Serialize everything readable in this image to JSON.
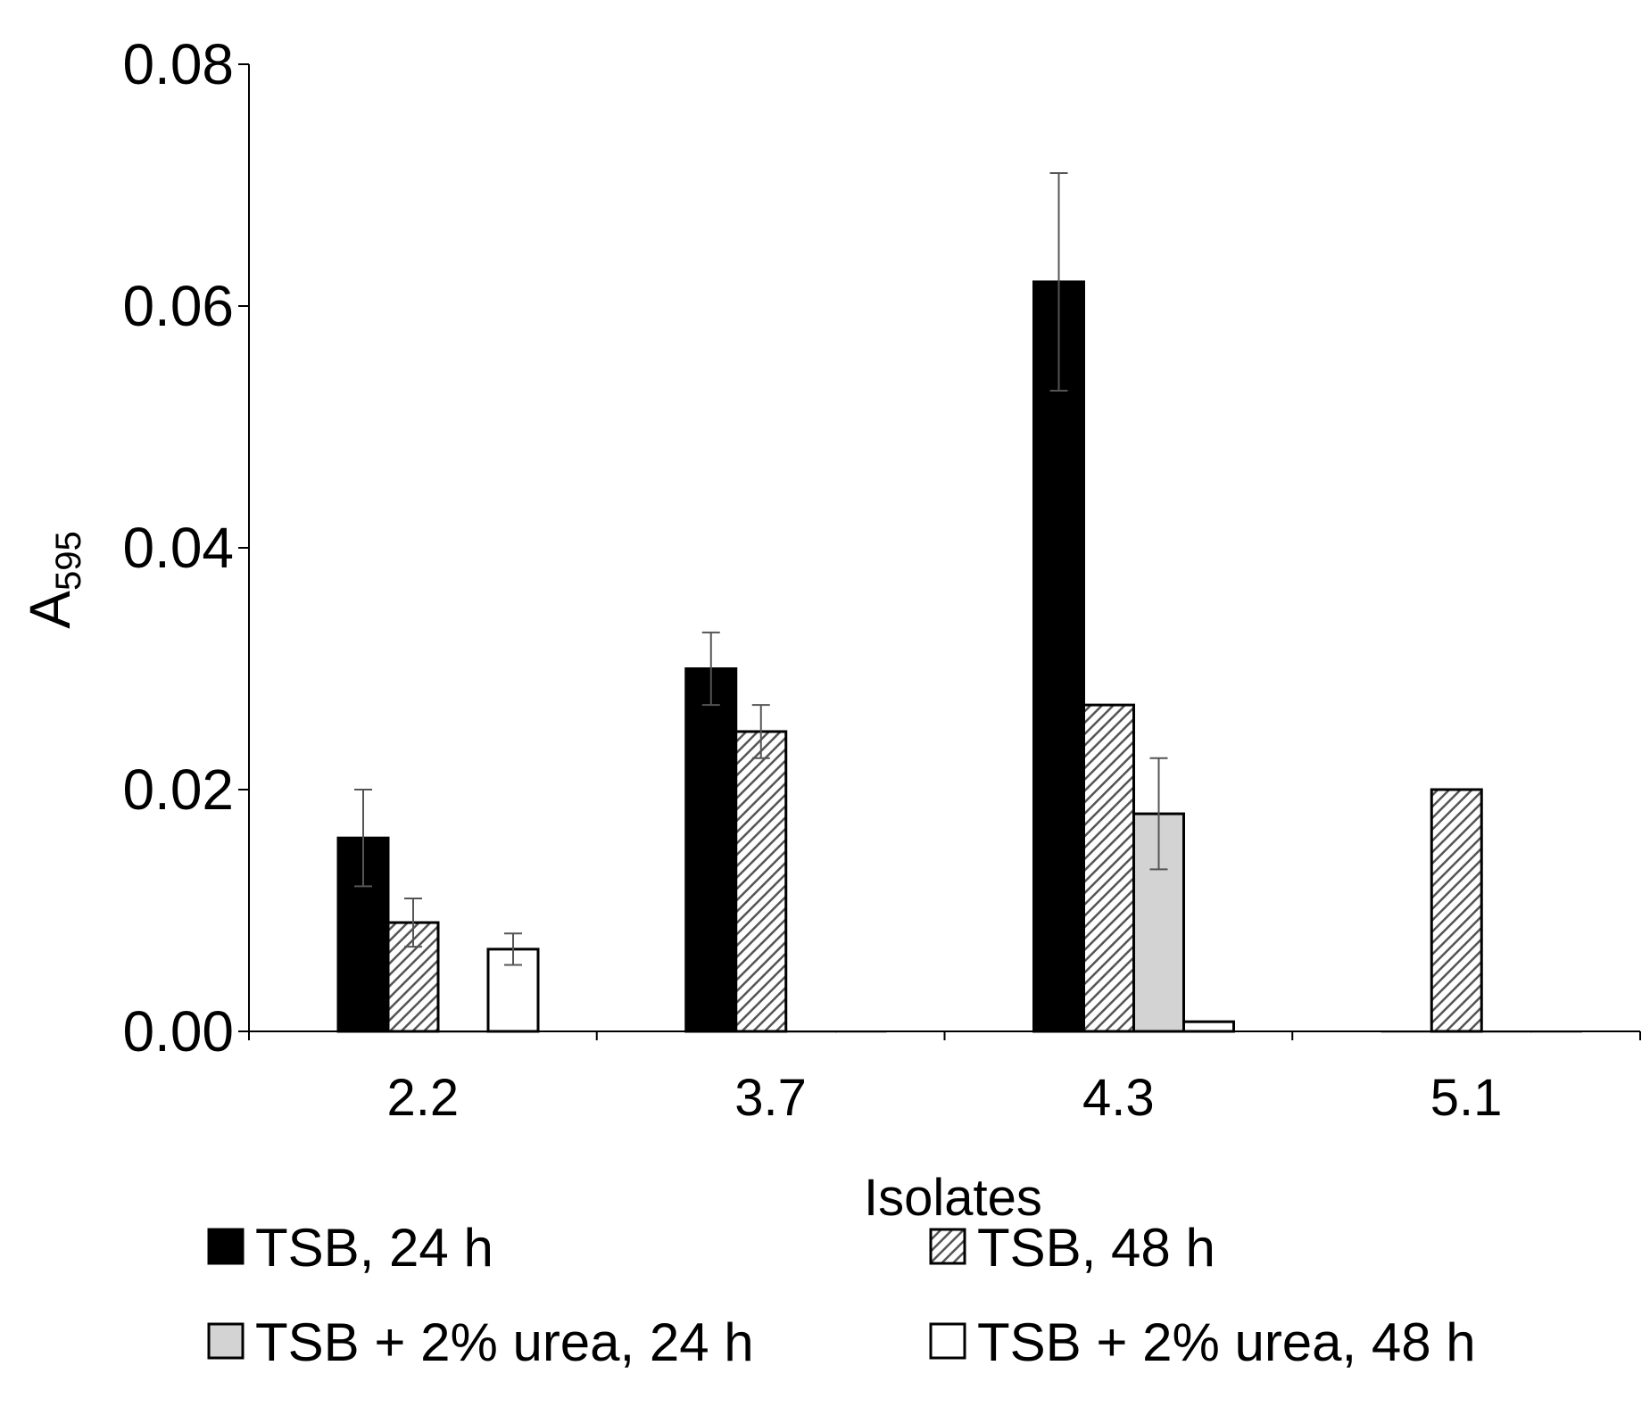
{
  "chart_data": {
    "type": "bar",
    "title": "",
    "xlabel": "Isolates",
    "ylabel": "A",
    "ylabel_subscript": "595",
    "categories": [
      "2.2",
      "3.7",
      "4.3",
      "5.1"
    ],
    "ylim": [
      0,
      0.08
    ],
    "yticks": [
      "0.00",
      "0.02",
      "0.04",
      "0.06",
      "0.08"
    ],
    "grid": false,
    "legend_position": "bottom",
    "series": [
      {
        "name": "TSB, 24 h",
        "fill": "#000000",
        "pattern": "solid",
        "values": [
          0.016,
          0.03,
          0.062,
          0.0
        ],
        "errors": [
          0.004,
          0.003,
          0.009,
          0.0
        ]
      },
      {
        "name": "TSB, 48 h",
        "fill": "#ffffff",
        "pattern": "hatch",
        "values": [
          0.009,
          0.0248,
          0.027,
          0.02
        ],
        "errors": [
          0.002,
          0.0022,
          0.0,
          0.0
        ]
      },
      {
        "name": "TSB + 2% urea, 24 h",
        "fill": "#d3d3d3",
        "pattern": "solid",
        "values": [
          0.0,
          0.0,
          0.018,
          0.0
        ],
        "errors": [
          0.0,
          0.0,
          0.0046,
          0.0
        ]
      },
      {
        "name": "TSB + 2% urea, 48 h",
        "fill": "#ffffff",
        "pattern": "solid",
        "values": [
          0.0068,
          0.0,
          0.0008,
          0.0
        ],
        "errors": [
          0.0013,
          0.0,
          0.0,
          0.0
        ]
      }
    ]
  }
}
